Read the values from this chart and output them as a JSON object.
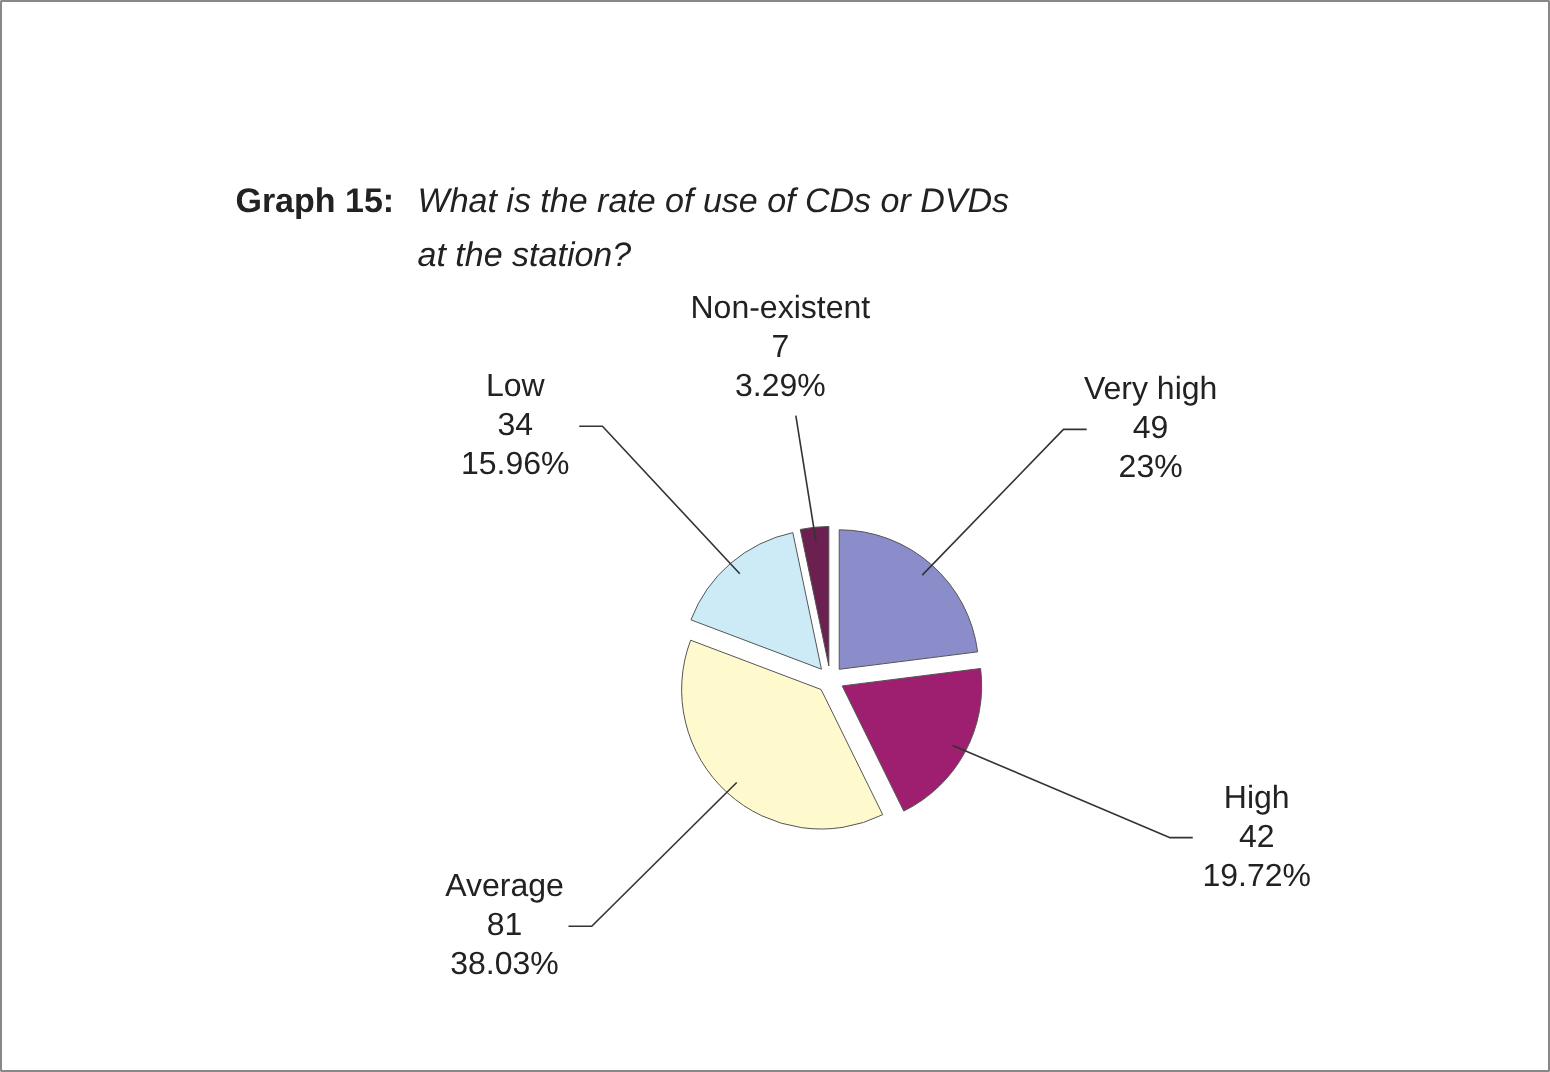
{
  "chart_data": {
    "type": "pie",
    "title": "Graph 15: What is the rate of use of CDs or DVDs at the station?",
    "categories": [
      "Very high",
      "High",
      "Average",
      "Low",
      "Non-existent"
    ],
    "values": [
      49,
      42,
      81,
      34,
      7
    ],
    "colors": [
      "#8b8dcb",
      "#9e1f6f",
      "#fffacd",
      "#ccebf7",
      "#6b2050"
    ],
    "value_labels": [
      "49\n23%",
      "42\n19.72%",
      "81\n38.03%",
      "34\n15.96%",
      "7\n3.29%"
    ]
  }
}
